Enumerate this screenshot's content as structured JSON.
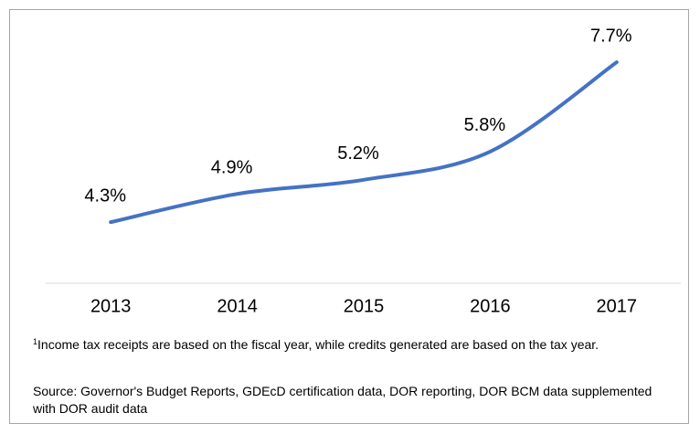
{
  "chart_data": {
    "type": "line",
    "categories": [
      "2013",
      "2014",
      "2015",
      "2016",
      "2017"
    ],
    "series": [
      {
        "color": "#4472c4",
        "values": [
          4.3,
          4.9,
          5.2,
          5.8,
          7.7
        ],
        "value_labels": [
          "4.3%",
          "4.9%",
          "5.2%",
          "5.8%",
          "7.7%"
        ]
      }
    ],
    "ylim": [
      3,
      8.5
    ],
    "footnote_marker": "1",
    "footnote": "Income tax receipts are based on the fiscal year, while credits generated are based on the tax year.",
    "source": "Source: Governor's Budget Reports, GDEcD certification data, DOR reporting, DOR BCM data supplemented with DOR audit data"
  }
}
